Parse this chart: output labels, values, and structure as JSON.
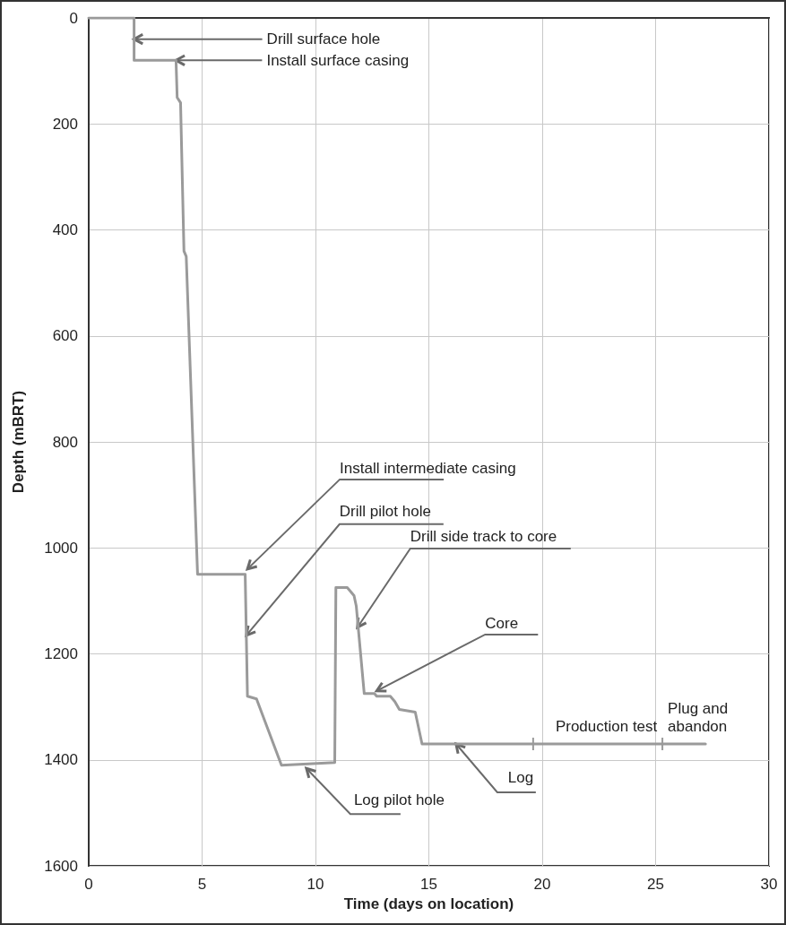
{
  "chart_data": {
    "type": "line",
    "xlabel": "Time (days on location)",
    "ylabel": "Depth (mBRT)",
    "x": [
      0,
      2.0,
      2.0,
      3.85,
      3.9,
      4.05,
      4.2,
      4.3,
      4.8,
      6.9,
      7.0,
      7.4,
      8.5,
      10.85,
      10.9,
      11.4,
      11.7,
      11.8,
      12.15,
      12.6,
      12.7,
      13.3,
      13.5,
      13.7,
      14.4,
      14.7,
      27.2
    ],
    "series": [
      {
        "color": "#9a9a9a",
        "values": [
          0,
          0,
          80,
          80,
          150,
          160,
          440,
          450,
          1050,
          1050,
          1280,
          1285,
          1410,
          1405,
          1075,
          1075,
          1090,
          1110,
          1275,
          1275,
          1280,
          1280,
          1290,
          1305,
          1310,
          1370,
          1370
        ]
      }
    ],
    "xlim": [
      0,
      30
    ],
    "xticks": [
      0,
      5,
      10,
      15,
      20,
      25,
      30
    ],
    "ylim": [
      1600,
      0
    ],
    "yticks": [
      0,
      200,
      400,
      600,
      800,
      1000,
      1200,
      1400,
      1600
    ],
    "grid": true,
    "marker": "none",
    "line_style": "solid",
    "annotations": [
      {
        "text": "Drill surface hole",
        "x": 2.0,
        "y": 40
      },
      {
        "text": "Install surface casing",
        "x": 3.85,
        "y": 80
      },
      {
        "text": "Install intermediate casing",
        "x": 7.0,
        "y": 1040
      },
      {
        "text": "Drill pilot hole",
        "x": 6.95,
        "y": 1165
      },
      {
        "text": "Drill side track to core",
        "x": 11.85,
        "y": 1150
      },
      {
        "text": "Core",
        "x": 12.7,
        "y": 1270
      },
      {
        "text": "Log pilot hole",
        "x": 9.6,
        "y": 1416
      },
      {
        "text": "Log",
        "x": 16.2,
        "y": 1370
      },
      {
        "text": "Production test",
        "x": 19.6,
        "y": 1370
      },
      {
        "text": "Plug and\nabandon",
        "x": 25.3,
        "y": 1370
      }
    ]
  }
}
